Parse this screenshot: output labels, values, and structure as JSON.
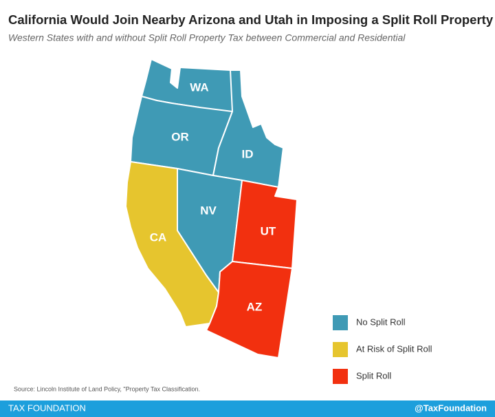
{
  "header": {
    "title": "California Would Join Nearby Arizona and Utah in Imposing a Split Roll Property Tax",
    "subtitle": "Western States with and without Split Roll Property Tax between Commercial and Residential"
  },
  "states": [
    {
      "label": "WA",
      "color": "#3f9ab5"
    },
    {
      "label": "OR",
      "color": "#3f9ab5"
    },
    {
      "label": "ID",
      "color": "#3f9ab5"
    },
    {
      "label": "NV",
      "color": "#3f9ab5"
    },
    {
      "label": "CA",
      "color": "#e6c52e"
    },
    {
      "label": "UT",
      "color": "#f2300f"
    },
    {
      "label": "AZ",
      "color": "#f2300f"
    }
  ],
  "legend": {
    "items": [
      {
        "label": "No Split Roll",
        "color": "#3f9ab5"
      },
      {
        "label": "At Risk of Split Roll",
        "color": "#e6c52e"
      },
      {
        "label": "Split Roll",
        "color": "#f2300f"
      }
    ]
  },
  "source": "Source: Lincoln Institute of Land Policy, \"Property Tax Classification.",
  "footer": {
    "left": "TAX FOUNDATION",
    "right": "@TaxFoundation"
  }
}
